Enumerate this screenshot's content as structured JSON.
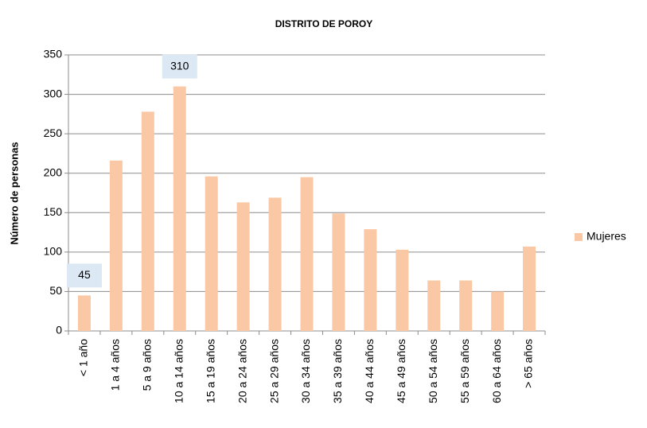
{
  "chart_data": {
    "type": "bar",
    "title": "DISTRITO DE POROY",
    "y_label": "Número de personas",
    "categories": [
      "< 1 año",
      "1 a 4 años",
      "5 a 9 años",
      "10 a 14 años",
      "15 a 19 años",
      "20 a 24 años",
      "25 a 29 años",
      "30 a 34 años",
      "35 a 39 años",
      "40 a 44 años",
      "45 a 49 años",
      "50 a 54 años",
      "55 a 59 años",
      "60 a 64 años",
      "> 65 años"
    ],
    "series": [
      {
        "name": "Mujeres",
        "color": "#fac8a4",
        "values": [
          45,
          216,
          278,
          310,
          196,
          163,
          169,
          195,
          149,
          129,
          103,
          64,
          64,
          50,
          107
        ],
        "value_labels": [
          45,
          null,
          null,
          310,
          null,
          null,
          null,
          null,
          null,
          null,
          null,
          null,
          null,
          null,
          null
        ]
      }
    ],
    "ylim": [
      0,
      350
    ],
    "yticks": [
      0,
      50,
      100,
      150,
      200,
      250,
      300,
      350
    ],
    "grid": true,
    "legend": "right"
  }
}
